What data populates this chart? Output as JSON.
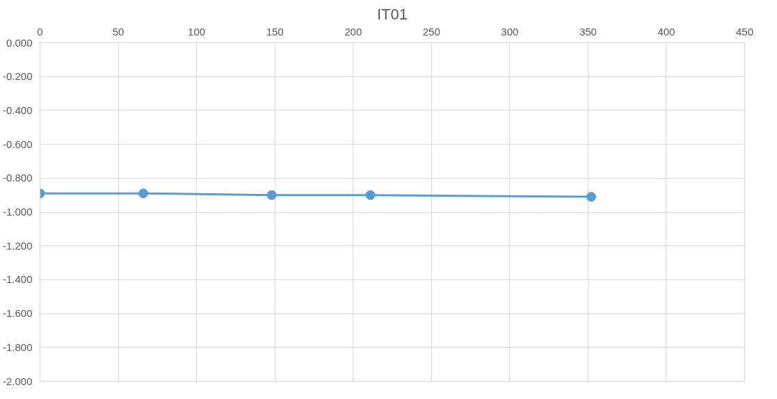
{
  "chart_data": {
    "type": "line",
    "title": "IT01",
    "x": [
      0,
      66,
      148,
      211,
      352
    ],
    "series": [
      {
        "color": "#5b9bd5",
        "values": [
          -0.89,
          -0.89,
          -0.9,
          -0.9,
          -0.91
        ]
      }
    ],
    "xlim": [
      0,
      450
    ],
    "xticks": [
      0,
      50,
      100,
      150,
      200,
      250,
      300,
      350,
      400,
      450
    ],
    "ylim": [
      -2.0,
      0.0
    ],
    "yticks": [
      {
        "value": 0,
        "label": "0.000"
      },
      {
        "value": -0.2,
        "label": "-0.200"
      },
      {
        "value": -0.4,
        "label": "-0.400"
      },
      {
        "value": -0.6,
        "label": "-0.600"
      },
      {
        "value": -0.8,
        "label": "-0.800"
      },
      {
        "value": -1.0,
        "label": "-1.000"
      },
      {
        "value": -1.2,
        "label": "-1.200"
      },
      {
        "value": -1.4,
        "label": "-1.400"
      },
      {
        "value": -1.6,
        "label": "-1.600"
      },
      {
        "value": -1.8,
        "label": "-1.800"
      },
      {
        "value": -2.0,
        "label": "-2.000"
      }
    ],
    "grid": true,
    "marker": "circle"
  }
}
